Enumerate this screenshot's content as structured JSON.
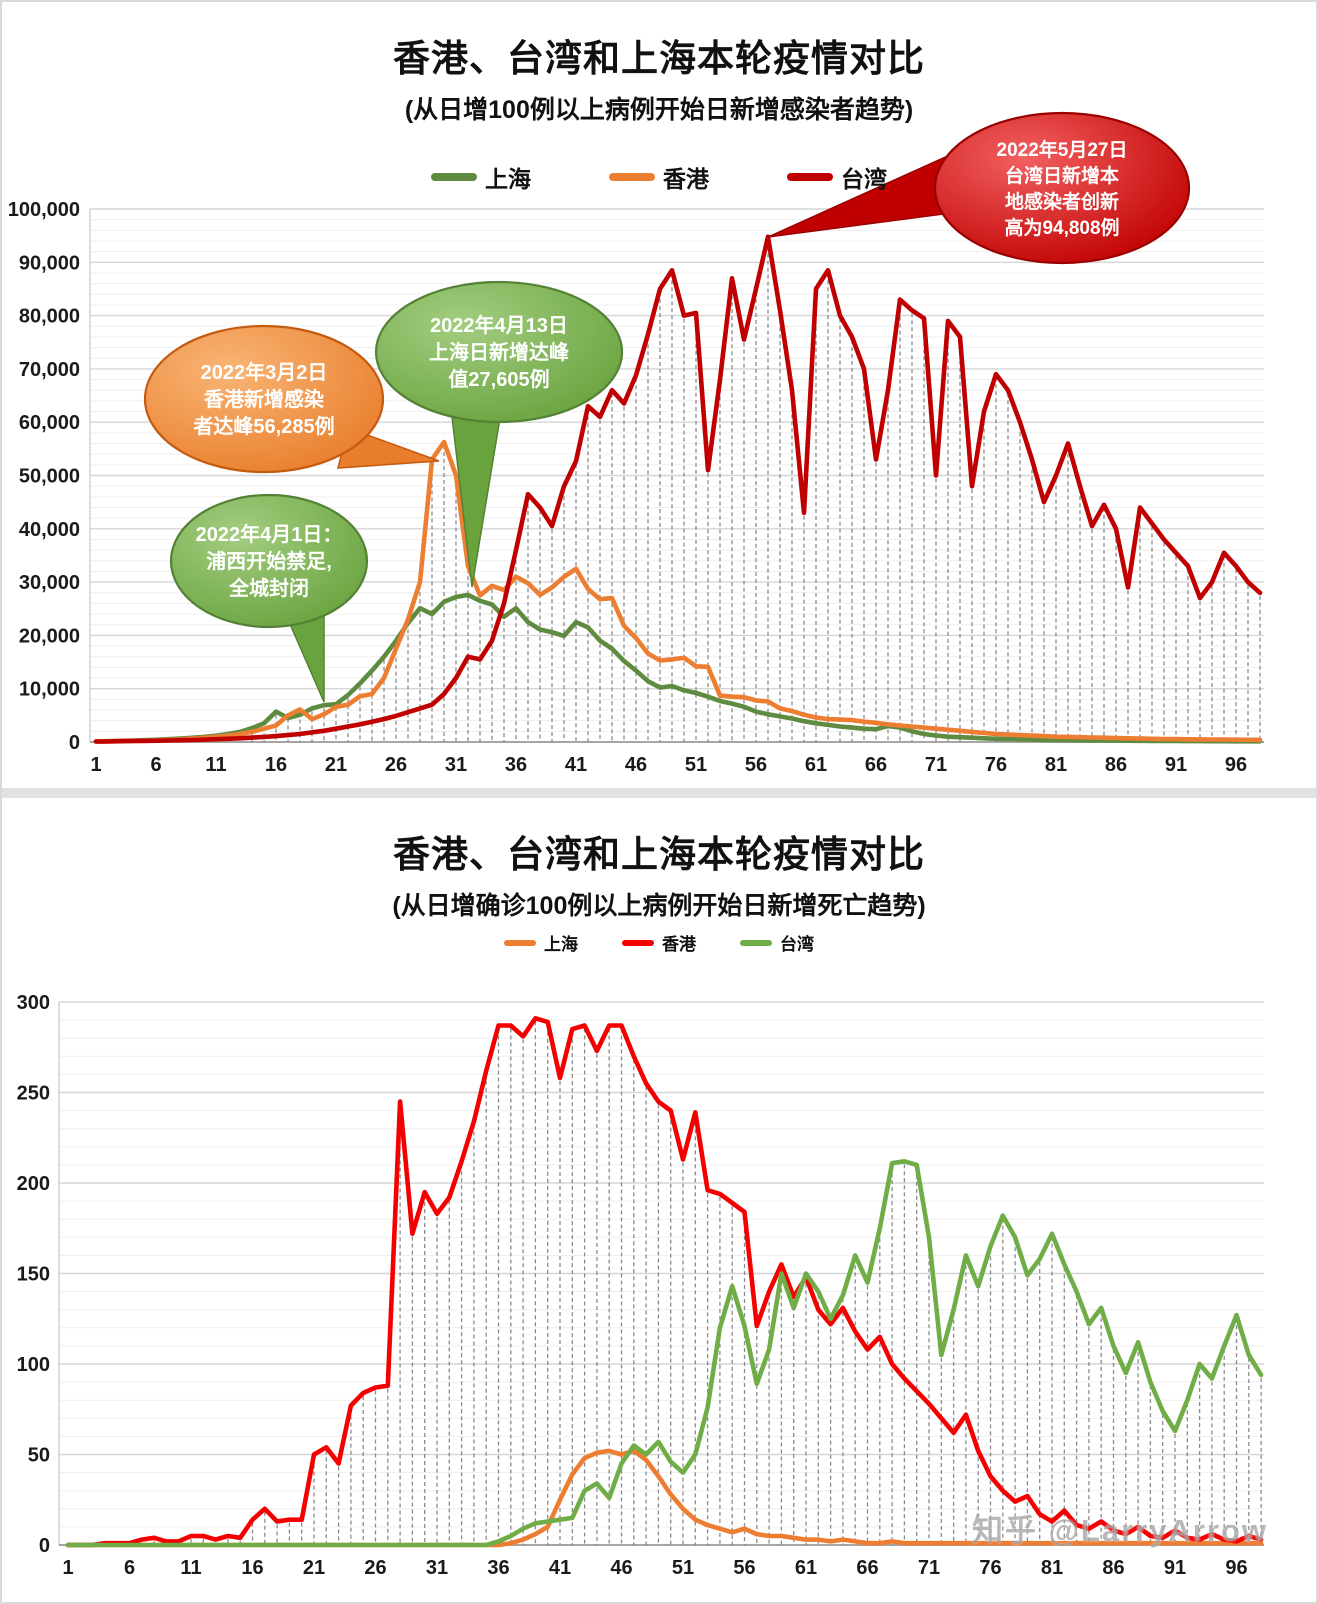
{
  "watermark": "知乎 @LarryArrow",
  "chart_data": [
    {
      "type": "line",
      "title": "香港、台湾和上海本轮疫情对比",
      "subtitle": "(从日增100例以上病例开始日新增感染者趋势)",
      "xlabel": "",
      "ylabel": "",
      "ylim": [
        0,
        100000
      ],
      "y_major": 10000,
      "y_minor": 2000,
      "grid": "on",
      "legend_position": "top",
      "y_ticks": [
        "100,000",
        "90,000",
        "80,000",
        "70,000",
        "60,000",
        "50,000",
        "40,000",
        "30,000",
        "20,000",
        "10,000",
        "0"
      ],
      "x_ticks": [
        1,
        6,
        11,
        16,
        21,
        26,
        31,
        36,
        41,
        46,
        51,
        56,
        61,
        66,
        71,
        76,
        81,
        86,
        91,
        96
      ],
      "x_range": [
        1,
        98
      ],
      "series": [
        {
          "id": "shanghai",
          "name": "上海",
          "color": "#5E8B3F",
          "values": [
            100,
            150,
            200,
            260,
            330,
            420,
            520,
            640,
            780,
            950,
            1200,
            1500,
            1900,
            2600,
            3500,
            5700,
            4500,
            5100,
            6300,
            6900,
            7100,
            8800,
            11000,
            13400,
            16000,
            19000,
            22300,
            25100,
            24000,
            26300,
            27200,
            27605,
            26500,
            25800,
            23500,
            25100,
            22500,
            21100,
            20600,
            19900,
            22500,
            21500,
            19000,
            17500,
            15200,
            13400,
            11400,
            10200,
            10500,
            9700,
            9200,
            8500,
            7700,
            7200,
            6600,
            5700,
            5200,
            4800,
            4400,
            3900,
            3500,
            3200,
            2900,
            2700,
            2500,
            2400,
            3000,
            2700,
            2000,
            1500,
            1200,
            1000,
            900,
            800,
            700,
            600,
            550,
            500,
            450,
            400,
            380,
            350,
            320,
            300,
            280,
            260,
            240,
            220,
            200,
            190,
            180,
            170,
            160,
            150,
            150,
            140,
            140,
            130
          ]
        },
        {
          "id": "hongkong",
          "name": "香港",
          "color": "#ED7D31",
          "values": [
            110,
            130,
            160,
            200,
            250,
            310,
            390,
            490,
            610,
            770,
            970,
            1200,
            1500,
            1900,
            2500,
            3100,
            5000,
            6100,
            4300,
            5200,
            6600,
            7000,
            8600,
            9000,
            12000,
            17500,
            23000,
            30000,
            53000,
            56285,
            50000,
            33000,
            27500,
            29300,
            28500,
            31000,
            29800,
            27600,
            29000,
            31000,
            32500,
            28700,
            26800,
            27000,
            21800,
            19500,
            16600,
            15300,
            15500,
            15800,
            14200,
            14100,
            8700,
            8500,
            8400,
            7800,
            7600,
            6300,
            5800,
            5100,
            4600,
            4300,
            4200,
            4100,
            3800,
            3600,
            3300,
            3100,
            2900,
            2700,
            2500,
            2300,
            2100,
            1900,
            1700,
            1500,
            1400,
            1300,
            1200,
            1100,
            1000,
            950,
            900,
            850,
            800,
            750,
            700,
            650,
            600,
            570,
            540,
            510,
            490,
            470,
            450,
            430,
            420,
            400
          ]
        },
        {
          "id": "taiwan",
          "name": "台湾",
          "color": "#C00000",
          "values": [
            100,
            120,
            150,
            180,
            210,
            240,
            280,
            330,
            380,
            440,
            520,
            600,
            700,
            820,
            960,
            1100,
            1300,
            1500,
            1800,
            2100,
            2500,
            2900,
            3300,
            3800,
            4300,
            4900,
            5600,
            6300,
            7000,
            9000,
            12000,
            16000,
            15500,
            19000,
            26000,
            36000,
            46500,
            44000,
            40500,
            48000,
            52700,
            63000,
            61000,
            66000,
            63500,
            68800,
            76500,
            85000,
            88500,
            80000,
            80500,
            51000,
            68000,
            87000,
            75500,
            85000,
            94808,
            81000,
            66000,
            43000,
            85000,
            88500,
            80000,
            76000,
            70000,
            53000,
            66000,
            83000,
            81000,
            79500,
            50000,
            79000,
            76000,
            48000,
            62000,
            69000,
            66000,
            60000,
            53000,
            45000,
            50000,
            56000,
            48000,
            40500,
            44500,
            40000,
            29000,
            44000,
            41000,
            38000,
            35500,
            33000,
            27000,
            30000,
            35500,
            33000,
            30000,
            28000
          ]
        }
      ],
      "annotations": [
        {
          "id": "hk-peak",
          "lines": [
            "2022年3月2日",
            "香港新增感染",
            "者达峰56,285例"
          ],
          "fill_light": "#F9B575",
          "fill_dark": "#E87D2B",
          "stroke": "#C55A11"
        },
        {
          "id": "sh-peak",
          "lines": [
            "2022年4月13日",
            "上海日新增达峰",
            "值27,605例"
          ],
          "fill_light": "#A3CD80",
          "fill_dark": "#69A33E",
          "stroke": "#538135"
        },
        {
          "id": "sh-lockdown",
          "lines": [
            "2022年4月1日：",
            "浦西开始禁足,",
            "全城封闭"
          ],
          "fill_light": "#A3CD80",
          "fill_dark": "#69A33E",
          "stroke": "#538135"
        },
        {
          "id": "tw-peak",
          "lines": [
            "2022年5月27日",
            "台湾日新增本",
            "地感染者创新",
            "高为94,808例"
          ],
          "fill_light": "#F26060",
          "fill_dark": "#C00000",
          "stroke": "#9A0000"
        }
      ]
    },
    {
      "type": "line",
      "title": "香港、台湾和上海本轮疫情对比",
      "subtitle": "(从日增确诊100例以上病例开始日新增死亡趋势)",
      "xlabel": "",
      "ylabel": "",
      "ylim": [
        0,
        300
      ],
      "y_major": 50,
      "y_minor": 10,
      "grid": "on",
      "legend_position": "top",
      "y_ticks": [
        "300",
        "250",
        "200",
        "150",
        "100",
        "50",
        "0"
      ],
      "x_ticks": [
        1,
        6,
        11,
        16,
        21,
        26,
        31,
        36,
        41,
        46,
        51,
        56,
        61,
        66,
        71,
        76,
        81,
        86,
        91,
        96
      ],
      "x_range": [
        1,
        98
      ],
      "series": [
        {
          "id": "shanghai",
          "name": "上海",
          "color": "#ED7D31",
          "values": [
            0,
            0,
            0,
            0,
            0,
            0,
            0,
            0,
            0,
            0,
            0,
            0,
            0,
            0,
            0,
            0,
            0,
            0,
            0,
            0,
            0,
            0,
            0,
            0,
            0,
            0,
            0,
            0,
            0,
            0,
            0,
            0,
            0,
            0,
            0,
            0,
            1,
            3,
            6,
            10,
            25,
            39,
            48,
            51,
            52,
            50,
            52,
            47,
            38,
            28,
            20,
            14,
            11,
            9,
            7,
            9,
            6,
            5,
            5,
            4,
            3,
            3,
            2,
            3,
            2,
            1,
            1,
            2,
            1,
            1,
            1,
            1,
            1,
            1,
            1,
            1,
            1,
            1,
            1,
            1,
            1,
            1,
            1,
            1,
            1,
            1,
            1,
            1,
            1,
            1,
            1,
            1,
            1,
            1,
            1,
            1,
            1,
            1
          ]
        },
        {
          "id": "hongkong",
          "name": "香港",
          "color": "#F40000",
          "values": [
            0,
            0,
            0,
            1,
            1,
            1,
            3,
            4,
            2,
            2,
            5,
            5,
            3,
            5,
            4,
            14,
            20,
            13,
            14,
            14,
            50,
            54,
            45,
            77,
            84,
            87,
            88,
            245,
            172,
            195,
            183,
            192,
            212,
            234,
            262,
            287,
            287,
            281,
            291,
            289,
            258,
            285,
            287,
            273,
            287,
            287,
            270,
            255,
            245,
            240,
            213,
            239,
            196,
            194,
            189,
            184,
            121,
            140,
            155,
            137,
            148,
            130,
            122,
            131,
            118,
            108,
            115,
            100,
            92,
            85,
            78,
            70,
            62,
            72,
            52,
            38,
            30,
            24,
            27,
            17,
            13,
            19,
            11,
            9,
            13,
            8,
            6,
            10,
            5,
            4,
            8,
            4,
            3,
            6,
            3,
            2,
            5,
            3
          ]
        },
        {
          "id": "taiwan",
          "name": "台湾",
          "color": "#70AD47",
          "values": [
            0,
            0,
            0,
            0,
            0,
            0,
            0,
            0,
            0,
            0,
            0,
            0,
            0,
            0,
            0,
            0,
            0,
            0,
            0,
            0,
            0,
            0,
            0,
            0,
            0,
            0,
            0,
            0,
            0,
            0,
            0,
            0,
            0,
            0,
            0,
            2,
            5,
            9,
            12,
            13,
            14,
            15,
            30,
            34,
            26,
            45,
            55,
            50,
            57,
            46,
            40,
            50,
            76,
            120,
            143,
            121,
            89,
            108,
            150,
            131,
            150,
            140,
            125,
            138,
            160,
            145,
            175,
            211,
            212,
            210,
            170,
            105,
            130,
            160,
            143,
            165,
            182,
            170,
            149,
            158,
            172,
            155,
            140,
            122,
            131,
            110,
            95,
            112,
            90,
            74,
            63,
            80,
            100,
            92,
            110,
            127,
            105,
            94
          ]
        }
      ],
      "annotations": []
    }
  ]
}
